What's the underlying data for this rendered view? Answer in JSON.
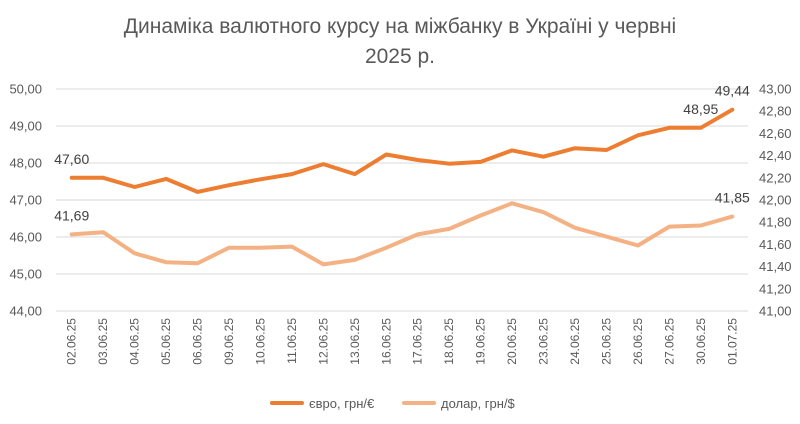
{
  "chart_data": {
    "type": "line",
    "title_lines": [
      "Динаміка валютного курсу на міжбанку в Україні у червні",
      "2025 р."
    ],
    "categories": [
      "02.06.25",
      "03.06.25",
      "04.06.25",
      "05.06.25",
      "06.06.25",
      "09.06.25",
      "10.06.25",
      "11.06.25",
      "12.06.25",
      "13.06.25",
      "16.06.25",
      "17.06.25",
      "18.06.25",
      "19.06.25",
      "20.06.25",
      "23.06.25",
      "24.06.25",
      "25.06.25",
      "26.06.25",
      "27.06.25",
      "30.06.25",
      "01.07.25"
    ],
    "y_left": {
      "range": [
        44,
        50
      ],
      "ticks": [
        "44,00",
        "45,00",
        "46,00",
        "47,00",
        "48,00",
        "49,00",
        "50,00"
      ]
    },
    "y_right": {
      "range": [
        41.0,
        43.0
      ],
      "ticks": [
        "41,00",
        "41,20",
        "41,40",
        "41,60",
        "41,80",
        "42,00",
        "42,20",
        "42,40",
        "42,60",
        "42,80",
        "43,00"
      ]
    },
    "grid": true,
    "legend_position": "bottom",
    "series": [
      {
        "name": "євро, грн/€",
        "axis": "left",
        "color": "#ed7d31",
        "values": [
          47.6,
          47.6,
          47.35,
          47.57,
          47.22,
          47.4,
          47.56,
          47.7,
          47.97,
          47.7,
          48.23,
          48.08,
          47.98,
          48.03,
          48.34,
          48.17,
          48.4,
          48.35,
          48.75,
          48.95,
          48.95,
          49.44
        ]
      },
      {
        "name": "долар, грн/$",
        "axis": "right",
        "color": "#f4b183",
        "values": [
          41.69,
          41.71,
          41.52,
          41.44,
          41.43,
          41.57,
          41.57,
          41.58,
          41.42,
          41.46,
          41.57,
          41.69,
          41.74,
          41.86,
          41.97,
          41.89,
          41.75,
          41.67,
          41.59,
          41.76,
          41.77,
          41.85
        ]
      }
    ],
    "data_labels": [
      {
        "series": 0,
        "index": 0,
        "text": "47,60"
      },
      {
        "series": 0,
        "index": 20,
        "text": "48,95"
      },
      {
        "series": 0,
        "index": 21,
        "text": "49,44"
      },
      {
        "series": 1,
        "index": 0,
        "text": "41,69"
      },
      {
        "series": 1,
        "index": 21,
        "text": "41,85"
      }
    ]
  }
}
